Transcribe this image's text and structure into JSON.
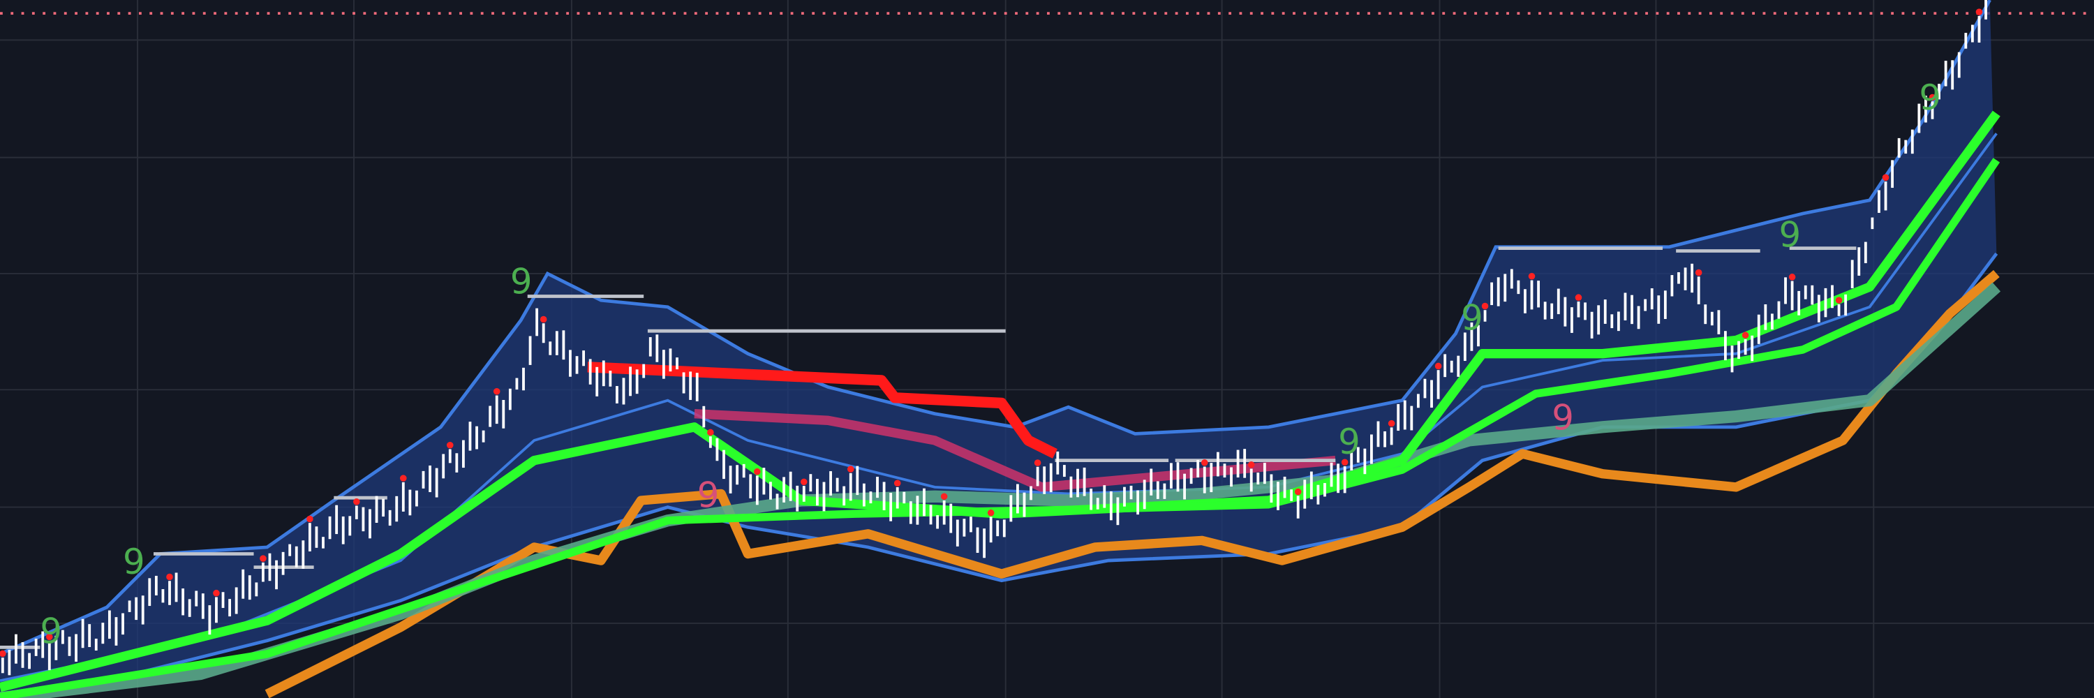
{
  "markers": [
    {
      "label": "9",
      "tone": "green"
    },
    {
      "label": "9",
      "tone": "green"
    },
    {
      "label": "9",
      "tone": "green"
    },
    {
      "label": "9",
      "tone": "pink"
    },
    {
      "label": "9",
      "tone": "green"
    },
    {
      "label": "9",
      "tone": "green"
    },
    {
      "label": "9",
      "tone": "pink"
    },
    {
      "label": "9",
      "tone": "green"
    },
    {
      "label": "9",
      "tone": "green"
    }
  ]
}
